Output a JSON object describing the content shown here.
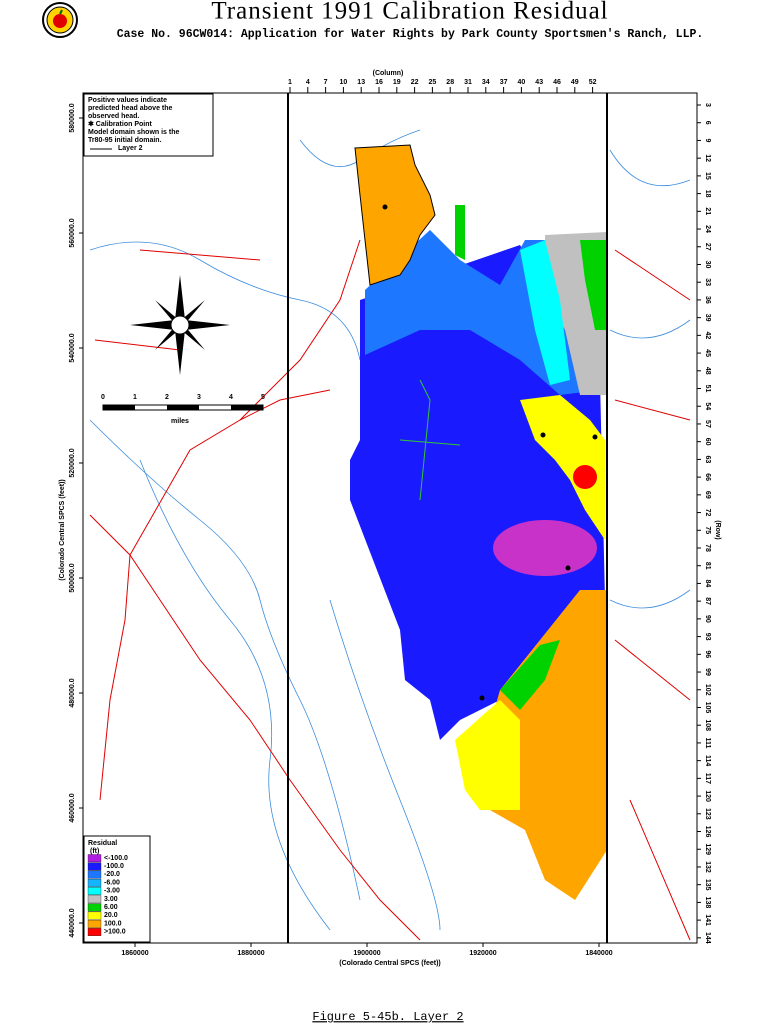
{
  "header": {
    "title": "Transient 1991 Calibration Residual",
    "subtitle": "Case No. 96CW014: Application for Water Rights by Park County Sportsmen's Ranch, LLP."
  },
  "map": {
    "column_label": "(Column)",
    "columns": [
      "1",
      "4",
      "7",
      "10",
      "13",
      "16",
      "19",
      "22",
      "25",
      "28",
      "31",
      "34",
      "37",
      "40",
      "43",
      "46",
      "49",
      "52"
    ],
    "row_label": "(Row)",
    "rows": [
      "3",
      "6",
      "9",
      "12",
      "15",
      "18",
      "21",
      "24",
      "27",
      "30",
      "33",
      "36",
      "39",
      "42",
      "45",
      "48",
      "51",
      "54",
      "57",
      "60",
      "63",
      "66",
      "69",
      "72",
      "75",
      "78",
      "81",
      "84",
      "87",
      "90",
      "93",
      "96",
      "99",
      "102",
      "105",
      "108",
      "111",
      "114",
      "117",
      "120",
      "123",
      "126",
      "129",
      "132",
      "135",
      "138",
      "141",
      "144"
    ],
    "y_label": "(Colorado Central SPCS (feet))",
    "y_ticks": [
      "580000.0",
      "560000.0",
      "540000.0",
      "520000.0",
      "500000.0",
      "480000.0",
      "460000.0",
      "440000.0"
    ],
    "x_label": "(Colorado Central SPCS (feet))",
    "x_ticks": [
      "1860000",
      "1880000",
      "1900000",
      "1920000",
      "1840000"
    ],
    "note": [
      "Positive values indicate",
      "predicted head above the",
      "observed head.",
      "✱ Calibration Point",
      "Model domain shown is the",
      "Tr80-95 initial domain.",
      "Layer 2"
    ],
    "scale": {
      "ticks": [
        "0",
        "1",
        "2",
        "3",
        "4",
        "5"
      ],
      "unit": "miles"
    },
    "legend": {
      "title": "Residual",
      "unit": "(ft)",
      "items": [
        {
          "label": "<-100.0",
          "color": "#b01ee0"
        },
        {
          "label": "-100.0",
          "color": "#1a1aff"
        },
        {
          "label": "-20.0",
          "color": "#1e78ff"
        },
        {
          "label": "-6.00",
          "color": "#14b4ff"
        },
        {
          "label": "-3.00",
          "color": "#00ffff"
        },
        {
          "label": "3.00",
          "color": "#c0c0c0"
        },
        {
          "label": "6.00",
          "color": "#00d200"
        },
        {
          "label": "20.0",
          "color": "#ffff00"
        },
        {
          "label": "100.0",
          "color": "#ffa500"
        },
        {
          "label": ">100.0",
          "color": "#ff0000"
        }
      ]
    }
  },
  "caption": "Figure 5-45b.  Layer 2"
}
